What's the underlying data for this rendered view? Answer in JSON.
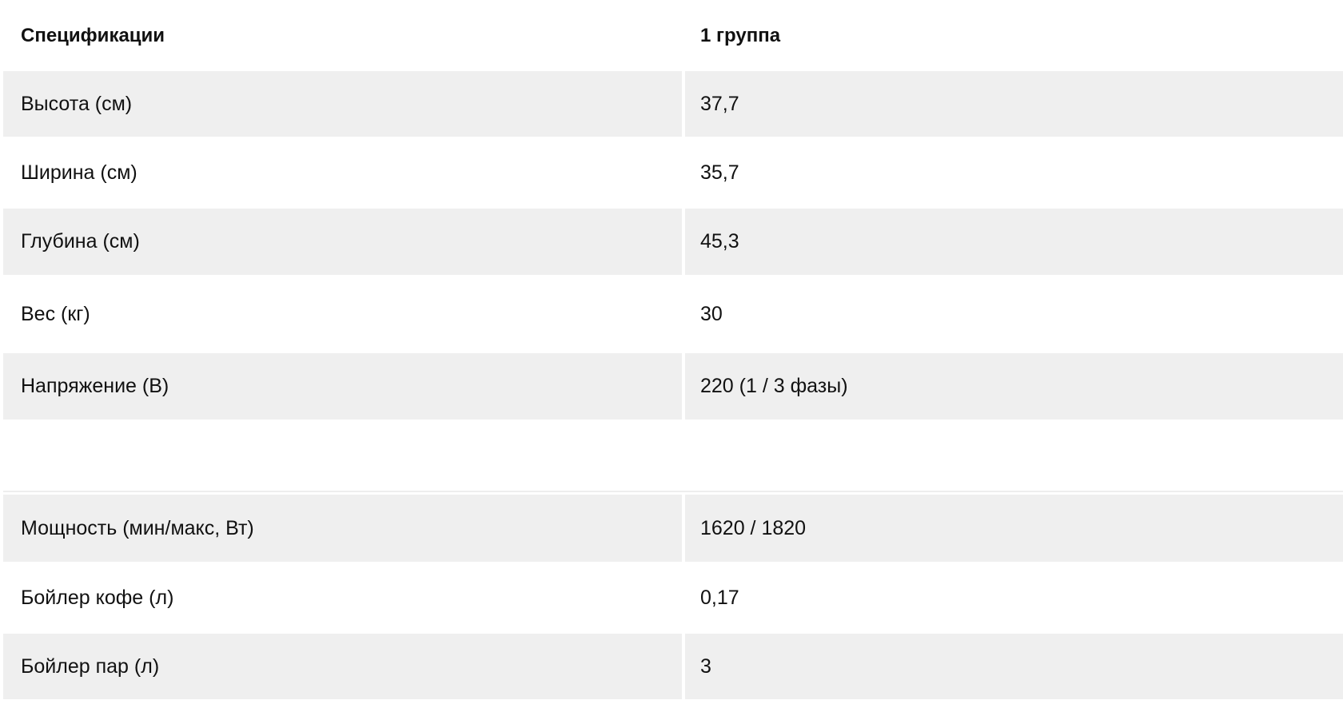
{
  "header": {
    "spec": "Спецификации",
    "group": "1 группа"
  },
  "rows_top": [
    {
      "label": "Высота (см)",
      "value": "37,7"
    },
    {
      "label": "Ширина (см)",
      "value": "35,7"
    },
    {
      "label": "Глубина (см)",
      "value": "45,3"
    },
    {
      "label": "Вес (кг)",
      "value": "30"
    },
    {
      "label": "Напряжение (В)",
      "value": "220 (1 / 3 фазы)"
    }
  ],
  "rows_bottom": [
    {
      "label": "Мощность (мин/макс, Вт)",
      "value": "1620 / 1820"
    },
    {
      "label": "Бойлер кофе (л)",
      "value": "0,17"
    },
    {
      "label": "Бойлер пар (л)",
      "value": "3"
    }
  ]
}
